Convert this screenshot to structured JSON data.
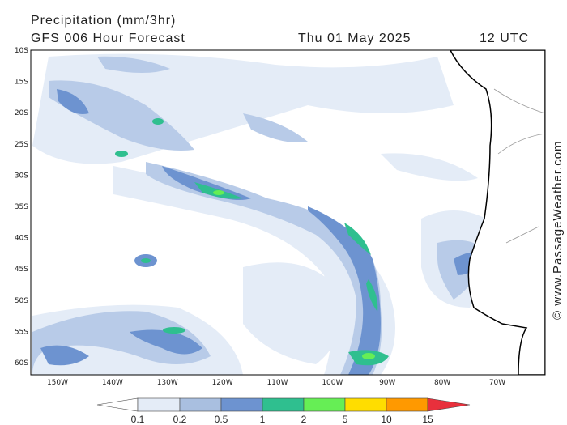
{
  "header": {
    "title": "Precipitation (mm/3hr)",
    "subtitle": "GFS 006 Hour Forecast",
    "date": "Thu 01 May 2025",
    "time": "12 UTC"
  },
  "map": {
    "latitude_labels": [
      "10S",
      "15S",
      "20S",
      "25S",
      "30S",
      "35S",
      "40S",
      "45S",
      "50S",
      "55S",
      "60S"
    ],
    "longitude_labels": [
      "150W",
      "140W",
      "130W",
      "120W",
      "110W",
      "100W",
      "90W",
      "80W",
      "70W"
    ]
  },
  "legend": {
    "labels": [
      "0.1",
      "0.2",
      "0.5",
      "1",
      "2",
      "5",
      "10",
      "15"
    ]
  },
  "watermark": "© www.PassageWeather.com"
}
